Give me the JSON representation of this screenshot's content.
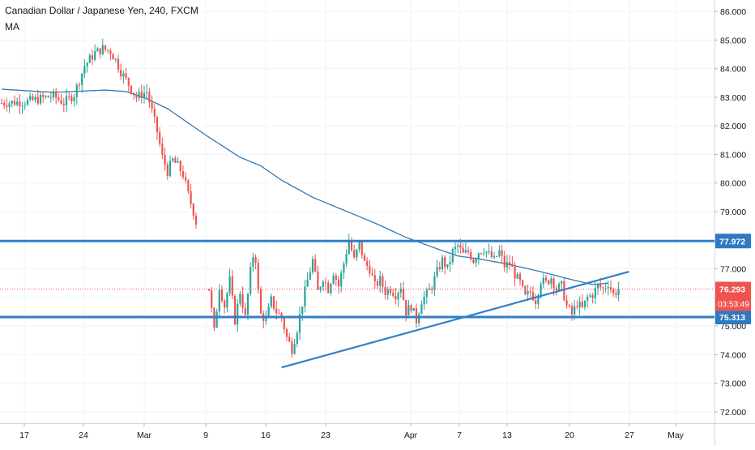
{
  "header": {
    "symbol_title": "Canadian Dollar / Japanese Yen, 240, FXCM",
    "indicator_label": "MA"
  },
  "colors": {
    "up": "#26a69a",
    "down": "#ef5350",
    "ma": "#3179b5",
    "level_line": "#2f80c8",
    "level_badge": "#2e79c0",
    "price_badge": "#ef5350",
    "grid": "#f0f3fa",
    "axis_text": "#131722"
  },
  "chart_data": {
    "type": "candlestick",
    "title": "Canadian Dollar / Japanese Yen, 240, FXCM",
    "xlabel": "",
    "ylabel": "",
    "ylim": [
      71.6,
      86.4
    ],
    "y_ticks": [
      "72.000",
      "73.000",
      "74.000",
      "75.000",
      "76.000",
      "77.000",
      "78.000",
      "79.000",
      "80.000",
      "81.000",
      "82.000",
      "83.000",
      "84.000",
      "85.000",
      "86.000"
    ],
    "x_ticks": [
      "17",
      "24",
      "Mar",
      "9",
      "16",
      "23",
      "Apr",
      "7",
      "13",
      "20",
      "27",
      "May"
    ],
    "grid": true,
    "legend": "none",
    "price_path": [
      {
        "t": 0,
        "v": 82.8
      },
      {
        "t": 5,
        "v": 82.85
      },
      {
        "t": 10,
        "v": 83.05
      },
      {
        "t": 12,
        "v": 82.8
      },
      {
        "t": 14,
        "v": 83.1
      },
      {
        "t": 16,
        "v": 84.1
      },
      {
        "t": 18,
        "v": 84.55
      },
      {
        "t": 19.5,
        "v": 84.7
      },
      {
        "t": 21,
        "v": 84.6
      },
      {
        "t": 22,
        "v": 84.3
      },
      {
        "t": 23,
        "v": 83.9
      },
      {
        "t": 24,
        "v": 83.6
      },
      {
        "t": 25,
        "v": 83.3
      },
      {
        "t": 26,
        "v": 83.0
      },
      {
        "t": 28,
        "v": 83.2
      },
      {
        "t": 29,
        "v": 82.5
      },
      {
        "t": 30,
        "v": 81.8
      },
      {
        "t": 31,
        "v": 80.9
      },
      {
        "t": 32,
        "v": 80.4
      },
      {
        "t": 33,
        "v": 80.8
      },
      {
        "t": 34,
        "v": 80.6
      },
      {
        "t": 35,
        "v": 80.3
      },
      {
        "t": 36,
        "v": 79.6
      },
      {
        "t": 37,
        "v": 79.0
      },
      {
        "t": 37.9,
        "v": 78.35
      },
      {
        "t": 40,
        "v": 76.3
      },
      {
        "t": 41,
        "v": 74.8
      },
      {
        "t": 42,
        "v": 76.4
      },
      {
        "t": 43,
        "v": 75.7
      },
      {
        "t": 44,
        "v": 76.6
      },
      {
        "t": 45,
        "v": 75.2
      },
      {
        "t": 46,
        "v": 76.2
      },
      {
        "t": 47,
        "v": 75.3
      },
      {
        "t": 48,
        "v": 76.9
      },
      {
        "t": 48.8,
        "v": 77.8
      },
      {
        "t": 49.5,
        "v": 76.2
      },
      {
        "t": 50,
        "v": 75.4
      },
      {
        "t": 51,
        "v": 75.2
      },
      {
        "t": 52,
        "v": 75.9
      },
      {
        "t": 53,
        "v": 75.5
      },
      {
        "t": 54,
        "v": 75.3
      },
      {
        "t": 55,
        "v": 74.6
      },
      {
        "t": 56,
        "v": 74.2
      },
      {
        "t": 57,
        "v": 74.9
      },
      {
        "t": 58,
        "v": 75.8
      },
      {
        "t": 59,
        "v": 76.6
      },
      {
        "t": 60,
        "v": 77.3
      },
      {
        "t": 61,
        "v": 76.2
      },
      {
        "t": 62,
        "v": 76.7
      },
      {
        "t": 63,
        "v": 76.3
      },
      {
        "t": 64,
        "v": 76.9
      },
      {
        "t": 65,
        "v": 76.4
      },
      {
        "t": 66,
        "v": 77.2
      },
      {
        "t": 67,
        "v": 78.0
      },
      {
        "t": 68,
        "v": 77.3
      },
      {
        "t": 69,
        "v": 77.9
      },
      {
        "t": 70,
        "v": 77.2
      },
      {
        "t": 71,
        "v": 77.0
      },
      {
        "t": 72,
        "v": 76.4
      },
      {
        "t": 73,
        "v": 76.6
      },
      {
        "t": 74,
        "v": 76.2
      },
      {
        "t": 75,
        "v": 76.3
      },
      {
        "t": 76,
        "v": 76.1
      },
      {
        "t": 77,
        "v": 76.4
      },
      {
        "t": 78,
        "v": 75.5
      },
      {
        "t": 79,
        "v": 75.7
      },
      {
        "t": 80,
        "v": 75.2
      },
      {
        "t": 81,
        "v": 75.9
      },
      {
        "t": 82,
        "v": 76.1
      },
      {
        "t": 83,
        "v": 76.4
      },
      {
        "t": 84,
        "v": 76.9
      },
      {
        "t": 85,
        "v": 77.3
      },
      {
        "t": 86,
        "v": 77.0
      },
      {
        "t": 87,
        "v": 77.6
      },
      {
        "t": 88,
        "v": 77.8
      },
      {
        "t": 89,
        "v": 77.5
      },
      {
        "t": 90,
        "v": 77.6
      },
      {
        "t": 91,
        "v": 77.3
      },
      {
        "t": 92,
        "v": 77.6
      },
      {
        "t": 93,
        "v": 77.7
      },
      {
        "t": 94,
        "v": 77.5
      },
      {
        "t": 95,
        "v": 77.3
      },
      {
        "t": 96,
        "v": 77.6
      },
      {
        "t": 97,
        "v": 77.1
      },
      {
        "t": 98,
        "v": 77.2
      },
      {
        "t": 99,
        "v": 76.8
      },
      {
        "t": 100,
        "v": 76.5
      },
      {
        "t": 101,
        "v": 76.0
      },
      {
        "t": 102,
        "v": 76.2
      },
      {
        "t": 103,
        "v": 75.9
      },
      {
        "t": 104,
        "v": 76.6
      },
      {
        "t": 105,
        "v": 76.5
      },
      {
        "t": 106,
        "v": 76.7
      },
      {
        "t": 107,
        "v": 76.3
      },
      {
        "t": 108,
        "v": 76.4
      },
      {
        "t": 109,
        "v": 75.7
      },
      {
        "t": 110,
        "v": 75.4
      },
      {
        "t": 111,
        "v": 75.8
      },
      {
        "t": 112,
        "v": 75.6
      },
      {
        "t": 113,
        "v": 76.0
      },
      {
        "t": 114,
        "v": 76.1
      },
      {
        "t": 115,
        "v": 76.4
      },
      {
        "t": 116,
        "v": 76.3
      },
      {
        "t": 117,
        "v": 76.5
      },
      {
        "t": 118,
        "v": 76.1
      },
      {
        "t": 119,
        "v": 76.29
      }
    ],
    "ma_path": [
      {
        "t": 0,
        "v": 83.28
      },
      {
        "t": 10,
        "v": 83.17
      },
      {
        "t": 20,
        "v": 83.25
      },
      {
        "t": 24,
        "v": 83.2
      },
      {
        "t": 28,
        "v": 82.95
      },
      {
        "t": 32,
        "v": 82.6
      },
      {
        "t": 36,
        "v": 82.1
      },
      {
        "t": 40,
        "v": 81.6
      },
      {
        "t": 46,
        "v": 80.9
      },
      {
        "t": 50,
        "v": 80.6
      },
      {
        "t": 54,
        "v": 80.1
      },
      {
        "t": 60,
        "v": 79.5
      },
      {
        "t": 66,
        "v": 79.05
      },
      {
        "t": 72,
        "v": 78.6
      },
      {
        "t": 78,
        "v": 78.1
      },
      {
        "t": 84,
        "v": 77.7
      },
      {
        "t": 88,
        "v": 77.45
      },
      {
        "t": 92,
        "v": 77.35
      },
      {
        "t": 98,
        "v": 77.15
      },
      {
        "t": 104,
        "v": 76.9
      },
      {
        "t": 110,
        "v": 76.62
      },
      {
        "t": 114,
        "v": 76.45
      },
      {
        "t": 117,
        "v": 76.5
      }
    ],
    "levels": [
      {
        "name": "resistance",
        "value": 77.972,
        "label": "77.972"
      },
      {
        "name": "support",
        "value": 75.313,
        "label": "75.313"
      }
    ],
    "trendline": {
      "start": {
        "t": 54,
        "v": 73.55
      },
      "end": {
        "t": 121,
        "v": 76.9
      }
    },
    "current_price": {
      "value": 76.293,
      "label": "76.293",
      "countdown": "03:53:49"
    }
  }
}
